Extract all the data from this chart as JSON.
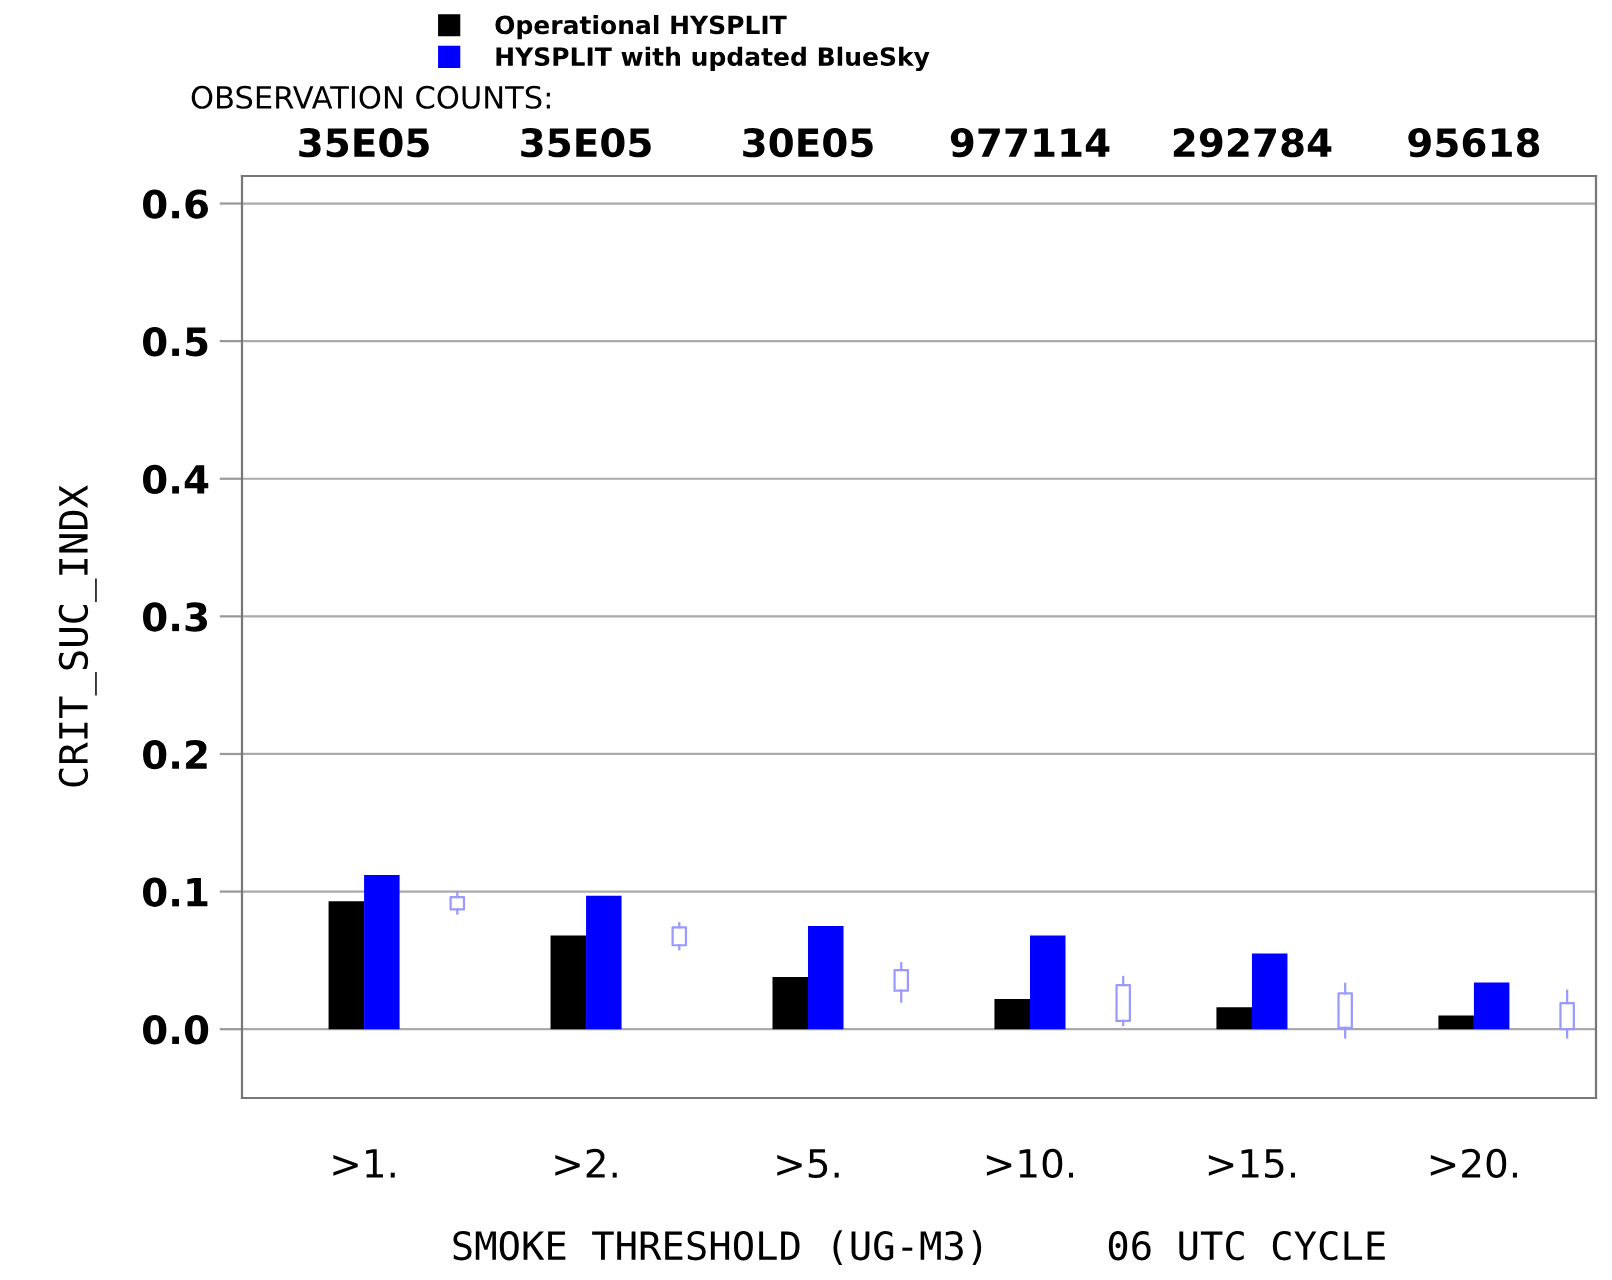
{
  "chart_data": {
    "type": "bar",
    "categories": [
      ">1.",
      ">2.",
      ">5.",
      ">10.",
      ">15.",
      ">20."
    ],
    "xlabel": "SMOKE THRESHOLD (UG-M3)     06 UTC CYCLE",
    "ylabel": "CRIT_SUC_INDX",
    "annotations": [
      "OBSERVATION COUNTS:",
      "35E05",
      "35E05",
      "30E05",
      "977114",
      "292784",
      "95618"
    ],
    "series": [
      {
        "name": "Operational HYSPLIT",
        "color": "#000000",
        "values": [
          0.093,
          0.068,
          0.038,
          0.022,
          0.016,
          0.01
        ]
      },
      {
        "name": "HYSPLIT with updated BlueSky",
        "color": "#0000ff",
        "values": [
          0.112,
          0.097,
          0.075,
          0.068,
          0.055,
          0.034
        ]
      },
      {
        "type": "box",
        "color": "#9999ff",
        "boxes": [
          {
            "low": 0.084,
            "q1": 0.087,
            "q3": 0.096,
            "high": 0.099
          },
          {
            "low": 0.058,
            "q1": 0.061,
            "q3": 0.074,
            "high": 0.077
          },
          {
            "low": 0.02,
            "q1": 0.028,
            "q3": 0.043,
            "high": 0.048
          },
          {
            "low": 0.003,
            "q1": 0.006,
            "q3": 0.032,
            "high": 0.038
          },
          {
            "low": -0.006,
            "q1": 0.001,
            "q3": 0.026,
            "high": 0.033
          },
          {
            "low": -0.006,
            "q1": 0.0,
            "q3": 0.019,
            "high": 0.028
          }
        ]
      }
    ],
    "ylim": [
      -0.05,
      0.62
    ],
    "yticks": [
      {
        "value": 0,
        "label": "0.0"
      },
      0.1,
      0.2,
      0.3,
      0.4,
      0.5,
      0.6
    ],
    "grid": "y",
    "legend": "top",
    "marker": "square"
  }
}
